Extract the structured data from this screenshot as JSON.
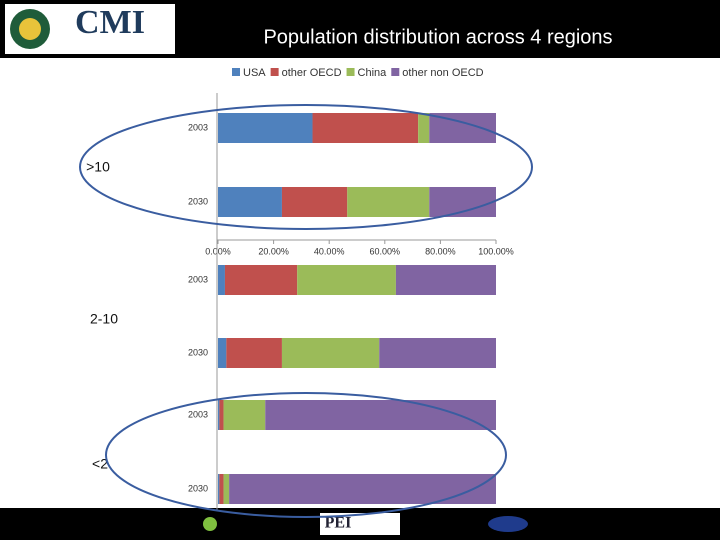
{
  "header": {
    "logo": "CMI",
    "title": "Population distribution across 4 regions",
    "footer_logo": "PEI"
  },
  "chart_data": [
    {
      "type": "bar",
      "orientation": "horizontal",
      "stacked": true,
      "label": ">10",
      "categories": [
        "2003",
        "2030"
      ],
      "series": [
        {
          "name": "USA",
          "color": "#4f81bd",
          "values": [
            34,
            23
          ]
        },
        {
          "name": "other OECD",
          "color": "#c0504d",
          "values": [
            38,
            23.5
          ]
        },
        {
          "name": "China",
          "color": "#9bbb59",
          "values": [
            4,
            29.5
          ]
        },
        {
          "name": "other non OECD",
          "color": "#8064a2",
          "values": [
            24,
            24
          ]
        }
      ],
      "xlim": [
        0,
        100
      ],
      "xticks": [
        {
          "value": 0,
          "label": "0.00%"
        },
        {
          "value": 20,
          "label": "20.00%"
        },
        {
          "value": 40,
          "label": "40.00%"
        },
        {
          "value": 60,
          "label": "60.00%"
        },
        {
          "value": 80,
          "label": "80.00%"
        },
        {
          "value": 100,
          "label": "100.00%"
        }
      ]
    },
    {
      "type": "bar",
      "orientation": "horizontal",
      "stacked": true,
      "label": "2-10",
      "categories": [
        "2003",
        "2030"
      ],
      "series": [
        {
          "values": [
            2.5,
            3
          ]
        },
        {
          "values": [
            26,
            20
          ]
        },
        {
          "values": [
            35.5,
            35
          ]
        },
        {
          "values": [
            36,
            42
          ]
        }
      ],
      "xlim": [
        0,
        100
      ]
    },
    {
      "type": "bar",
      "orientation": "horizontal",
      "stacked": true,
      "label": "<2",
      "categories": [
        "2003",
        "2030"
      ],
      "series": [
        {
          "values": [
            0.5,
            0.5
          ]
        },
        {
          "values": [
            1.5,
            1.5
          ]
        },
        {
          "values": [
            15,
            2
          ]
        },
        {
          "values": [
            83,
            96
          ]
        }
      ],
      "xlim": [
        0,
        100
      ]
    }
  ]
}
